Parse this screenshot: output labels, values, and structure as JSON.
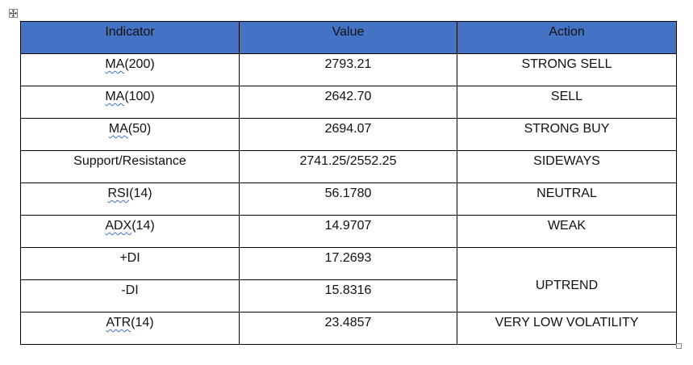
{
  "table": {
    "headers": [
      "Indicator",
      "Value",
      "Action"
    ],
    "rows": [
      {
        "indicator_name": "MA",
        "indicator_param": "(200)",
        "value": "2793.21",
        "action": "STRONG SELL"
      },
      {
        "indicator_name": "MA",
        "indicator_param": "(100)",
        "value": "2642.70",
        "action": "SELL"
      },
      {
        "indicator_name": "MA",
        "indicator_param": "(50)",
        "value": "2694.07",
        "action": "STRONG BUY"
      },
      {
        "indicator": "Support/Resistance",
        "value": "2741.25/2552.25",
        "action": "SIDEWAYS"
      },
      {
        "indicator_name": "RSI",
        "indicator_param": "(14)",
        "value": "56.1780",
        "action": "NEUTRAL"
      },
      {
        "indicator_name": "ADX",
        "indicator_param": "(14)",
        "value": "14.9707",
        "action": "WEAK"
      },
      {
        "indicator": "+DI",
        "value": "17.2693"
      },
      {
        "indicator": "-DI",
        "value": "15.8316",
        "action": "UPTREND"
      },
      {
        "indicator_name": "ATR",
        "indicator_param": "(14)",
        "value": "23.4857",
        "action": "VERY LOW VOLATILITY"
      }
    ]
  },
  "colors": {
    "header_background": "#4472c4",
    "spellcheck_underline": "#4472c4",
    "border": "#000000"
  },
  "icons": {
    "move_handle": "table-move-handle-icon",
    "resize_handle": "table-resize-handle-icon"
  }
}
